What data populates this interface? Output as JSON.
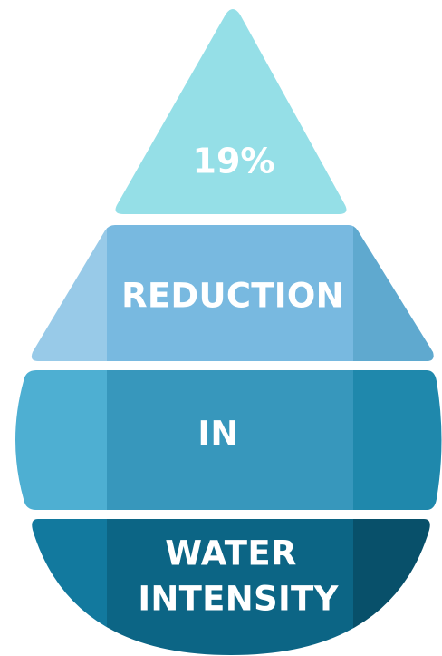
{
  "infographic": {
    "segments": [
      {
        "label": "19%"
      },
      {
        "label": "REDUCTION"
      },
      {
        "label": "IN"
      },
      {
        "label_lines": [
          "WATER",
          "INTENSITY"
        ]
      }
    ]
  },
  "colors": {
    "tier1": "#95DFE7",
    "tier2_left": "#98CAE8",
    "tier2_center": "#78B9E0",
    "tier2_right": "#5FA9CF",
    "tier3_left": "#4EAFD2",
    "tier3_center": "#3797BC",
    "tier3_right": "#1F88AC",
    "tier4_left": "#12799E",
    "tier4_center": "#0C6585",
    "tier4_right": "#08506A",
    "text": "#FFFFFF"
  }
}
